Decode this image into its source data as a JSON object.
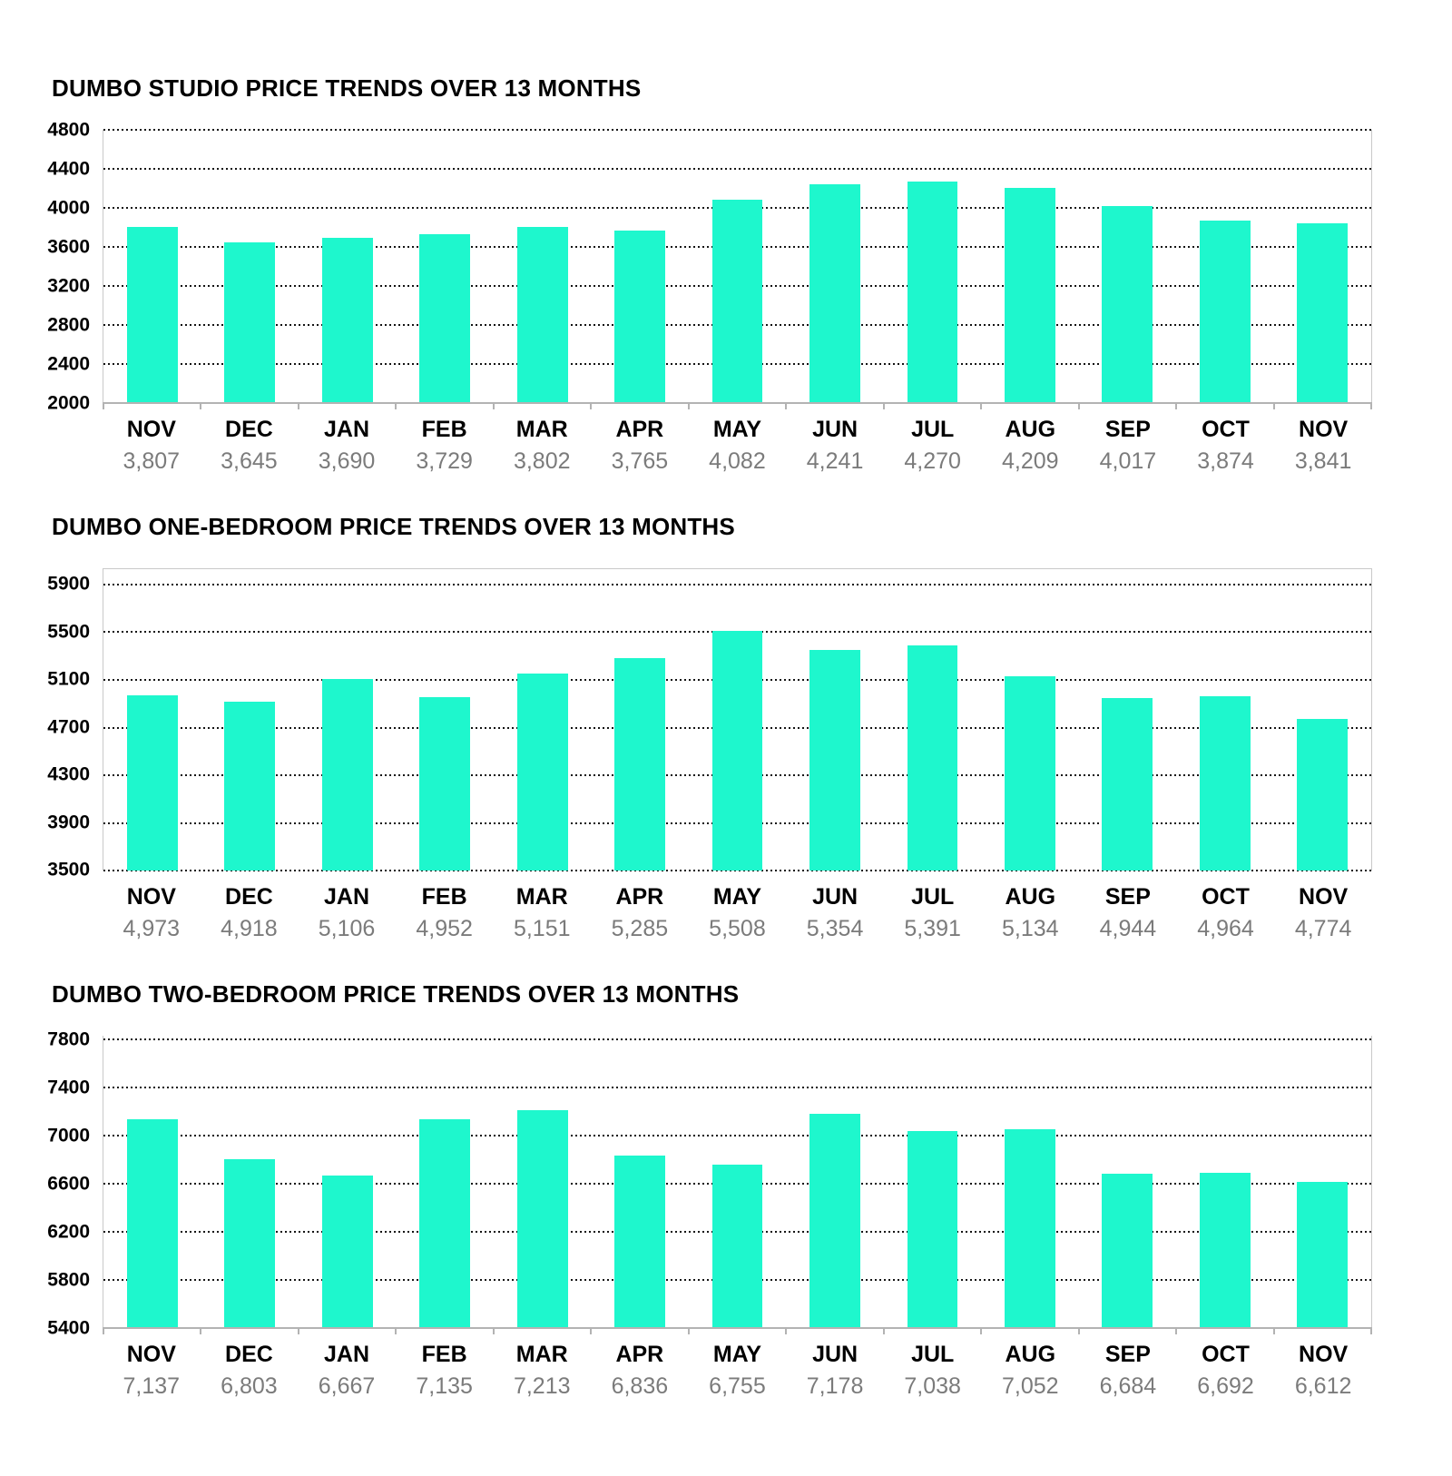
{
  "colors": {
    "bar": "#1ef7cd",
    "gridline": "#141414",
    "axis_line": "#b3b3b3",
    "plot_border": "#c9c9c9",
    "title": "#000000",
    "month_label": "#000000",
    "value_label": "#7b7b7b"
  },
  "chart_data": [
    {
      "type": "bar",
      "title": "DUMBO STUDIO PRICE TRENDS OVER 13 MONTHS",
      "categories": [
        "NOV",
        "DEC",
        "JAN",
        "FEB",
        "MAR",
        "APR",
        "MAY",
        "JUN",
        "JUL",
        "AUG",
        "SEP",
        "OCT",
        "NOV"
      ],
      "values": [
        3807,
        3645,
        3690,
        3729,
        3802,
        3765,
        4082,
        4241,
        4270,
        4209,
        4017,
        3874,
        3841
      ],
      "value_labels": [
        "3,807",
        "3,645",
        "3,690",
        "3,729",
        "3,802",
        "3,765",
        "4,082",
        "4,241",
        "4,270",
        "4,209",
        "4,017",
        "3,874",
        "3,841"
      ],
      "ylim": [
        2000,
        4800
      ],
      "yticks": [
        4800,
        4400,
        4000,
        3600,
        3200,
        2800,
        2400,
        2000
      ],
      "ytick_step": 400,
      "grid": "dotted-horizontal",
      "baseline_style": "solid",
      "axis_tick_marks": true,
      "legend": "none"
    },
    {
      "type": "bar",
      "title": "DUMBO ONE-BEDROOM PRICE TRENDS OVER 13 MONTHS",
      "categories": [
        "NOV",
        "DEC",
        "JAN",
        "FEB",
        "MAR",
        "APR",
        "MAY",
        "JUN",
        "JUL",
        "AUG",
        "SEP",
        "OCT",
        "NOV"
      ],
      "values": [
        4973,
        4918,
        5106,
        4952,
        5151,
        5285,
        5508,
        5354,
        5391,
        5134,
        4944,
        4964,
        4774
      ],
      "value_labels": [
        "4,973",
        "4,918",
        "5,106",
        "4,952",
        "5,151",
        "5,285",
        "5,508",
        "5,354",
        "5,391",
        "5,134",
        "4,944",
        "4,964",
        "4,774"
      ],
      "ylim": [
        3500,
        5900
      ],
      "yticks": [
        5900,
        5500,
        5100,
        4700,
        4300,
        3900,
        3500
      ],
      "ytick_step": 400,
      "grid": "dotted-horizontal",
      "baseline_style": "dotted",
      "axis_tick_marks": false,
      "legend": "none"
    },
    {
      "type": "bar",
      "title": "DUMBO TWO-BEDROOM PRICE TRENDS OVER 13 MONTHS",
      "categories": [
        "NOV",
        "DEC",
        "JAN",
        "FEB",
        "MAR",
        "APR",
        "MAY",
        "JUN",
        "JUL",
        "AUG",
        "SEP",
        "OCT",
        "NOV"
      ],
      "values": [
        7137,
        6803,
        6667,
        7135,
        7213,
        6836,
        6755,
        7178,
        7038,
        7052,
        6684,
        6692,
        6612
      ],
      "value_labels": [
        "7,137",
        "6,803",
        "6,667",
        "7,135",
        "7,213",
        "6,836",
        "6,755",
        "7,178",
        "7,038",
        "7,052",
        "6,684",
        "6,692",
        "6,612"
      ],
      "ylim": [
        5400,
        7800
      ],
      "yticks": [
        7800,
        7400,
        7000,
        6600,
        6200,
        5800,
        5400
      ],
      "ytick_step": 400,
      "grid": "dotted-horizontal",
      "baseline_style": "solid",
      "axis_tick_marks": true,
      "legend": "none"
    }
  ]
}
